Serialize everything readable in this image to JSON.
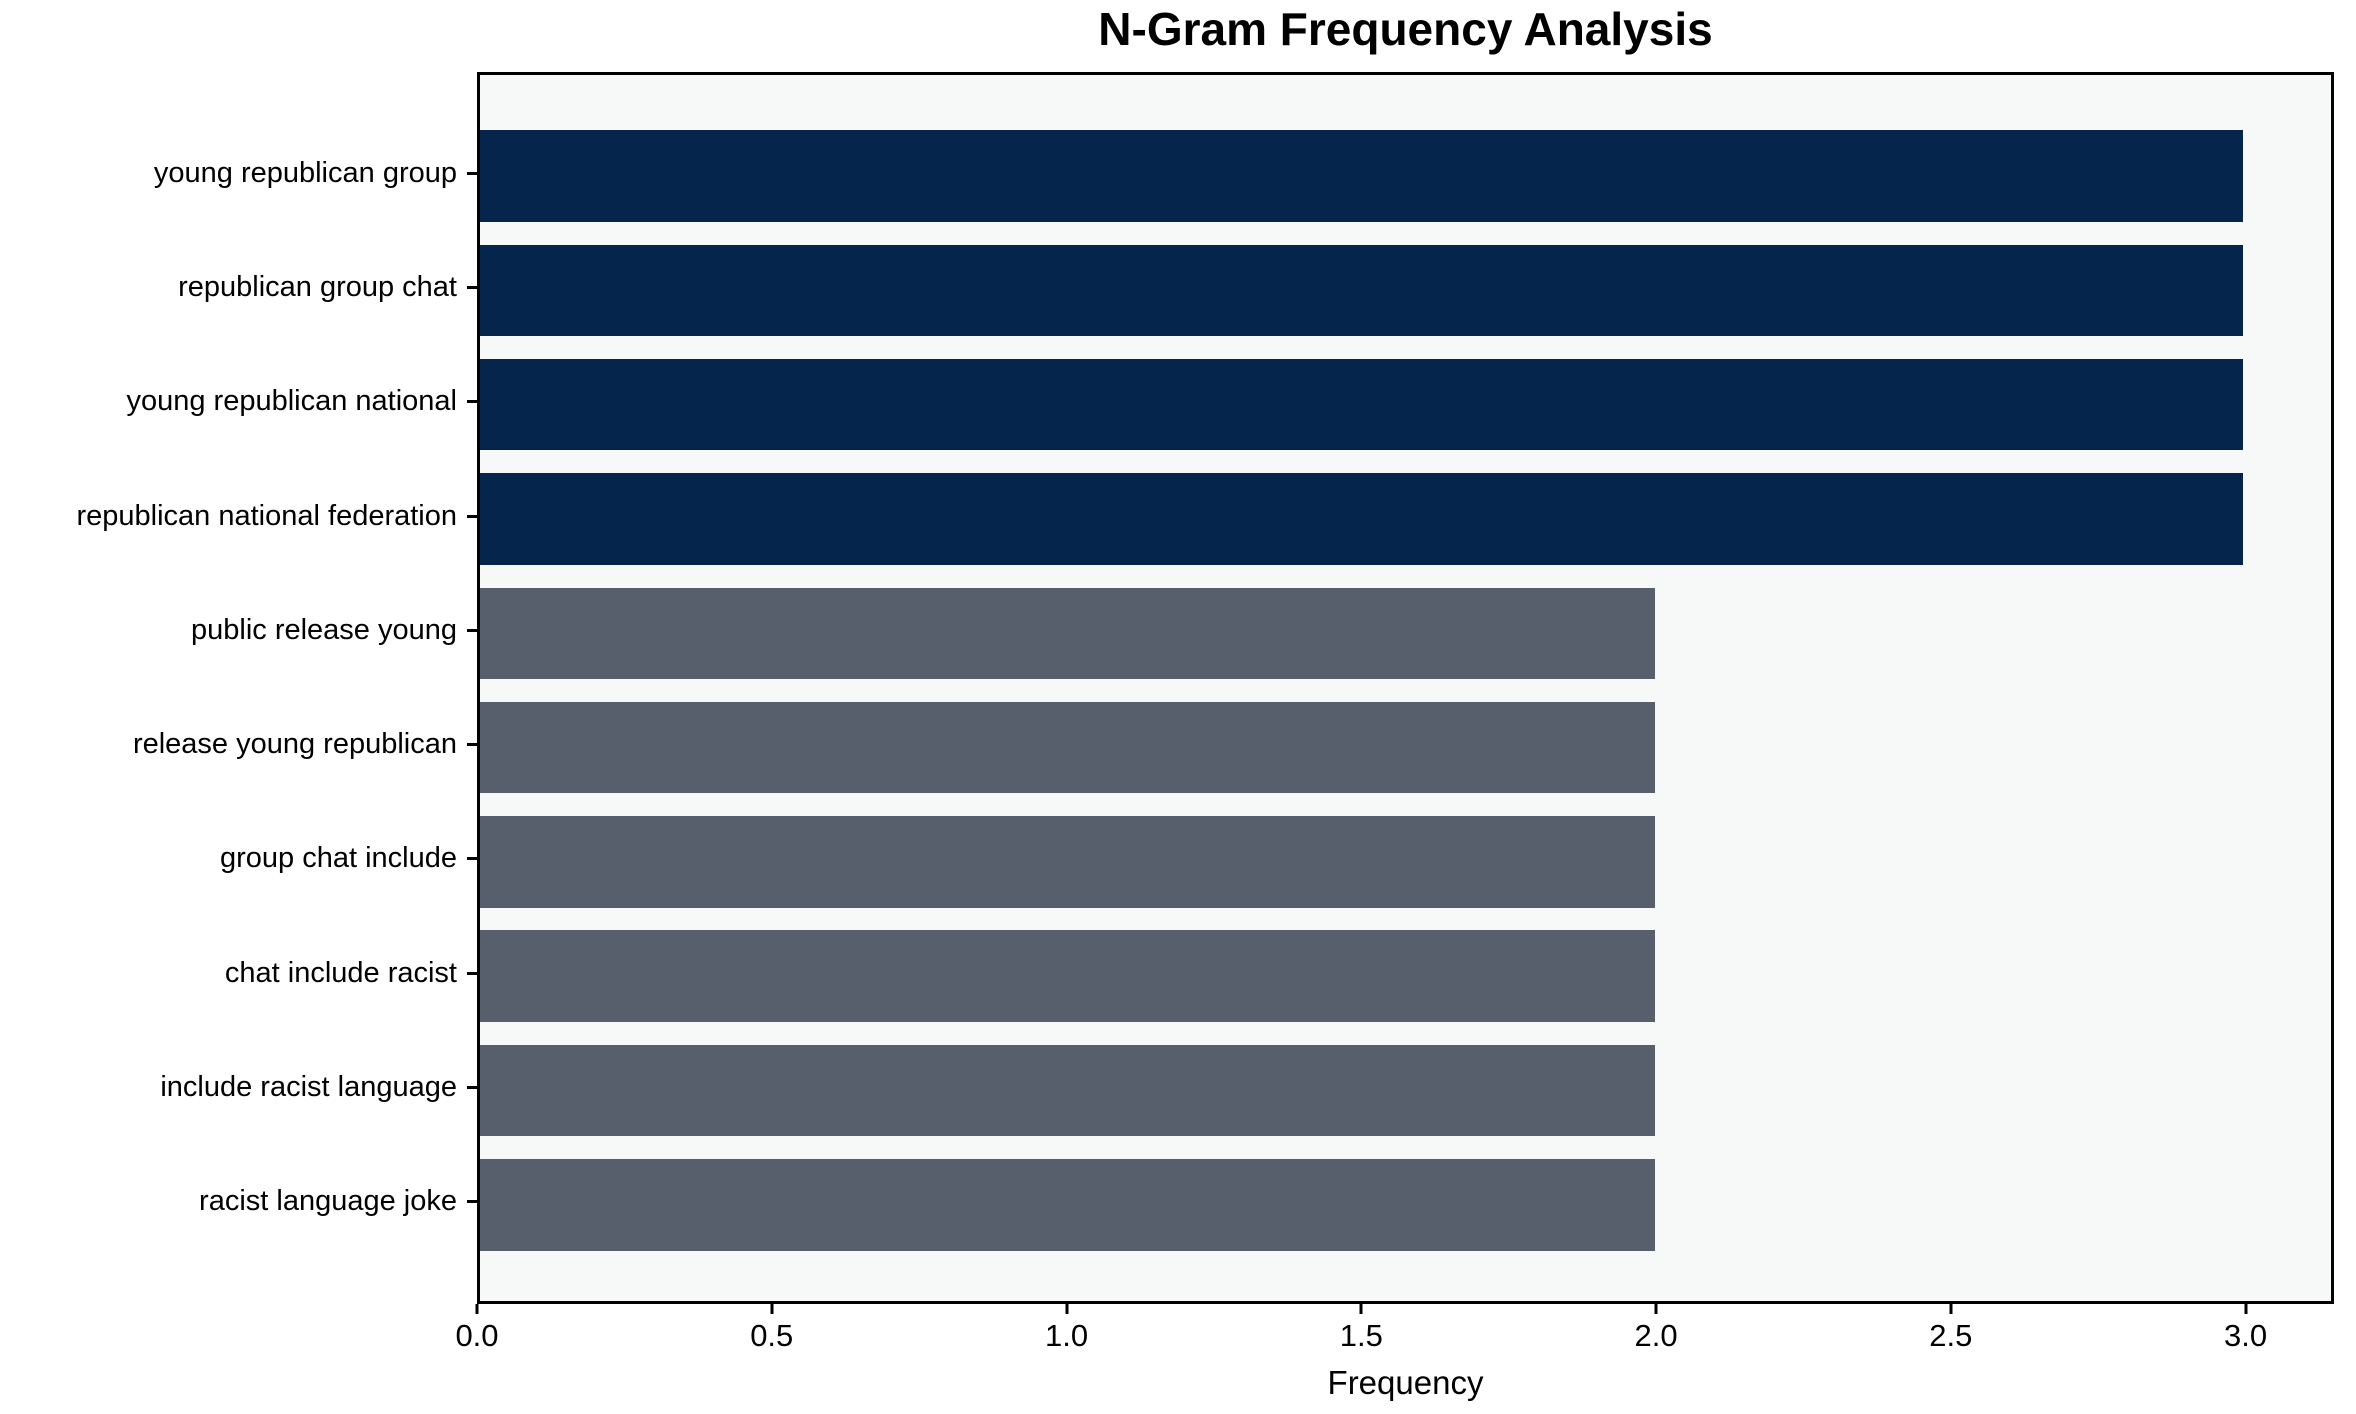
{
  "chart_data": {
    "type": "bar",
    "orientation": "horizontal",
    "title": "N-Gram Frequency Analysis",
    "xlabel": "Frequency",
    "ylabel": "",
    "categories": [
      "young republican group",
      "republican group chat",
      "young republican national",
      "republican national federation",
      "public release young",
      "release young republican",
      "group chat include",
      "chat include racist",
      "include racist language",
      "racist language joke"
    ],
    "values": [
      3,
      3,
      3,
      3,
      2,
      2,
      2,
      2,
      2,
      2
    ],
    "bar_colors": [
      "#05254C",
      "#05254C",
      "#05254C",
      "#05254C",
      "#575E6C",
      "#575E6C",
      "#575E6C",
      "#575E6C",
      "#575E6C",
      "#575E6C"
    ],
    "xlim": [
      0,
      3.15
    ],
    "xtick_values": [
      0,
      0.5,
      1,
      1.5,
      2,
      2.5,
      3
    ],
    "xtick_labels": [
      "0.0",
      "0.5",
      "1.0",
      "1.5",
      "2.0",
      "2.5",
      "3.0"
    ],
    "grid": "off",
    "legend": "none",
    "colors": {
      "bar_high": "#05254C",
      "bar_low": "#575E6C",
      "plot_background": "#F7F8F8",
      "figure_background": "#FFFFFF",
      "spine": "#000000",
      "text": "#000000"
    }
  }
}
